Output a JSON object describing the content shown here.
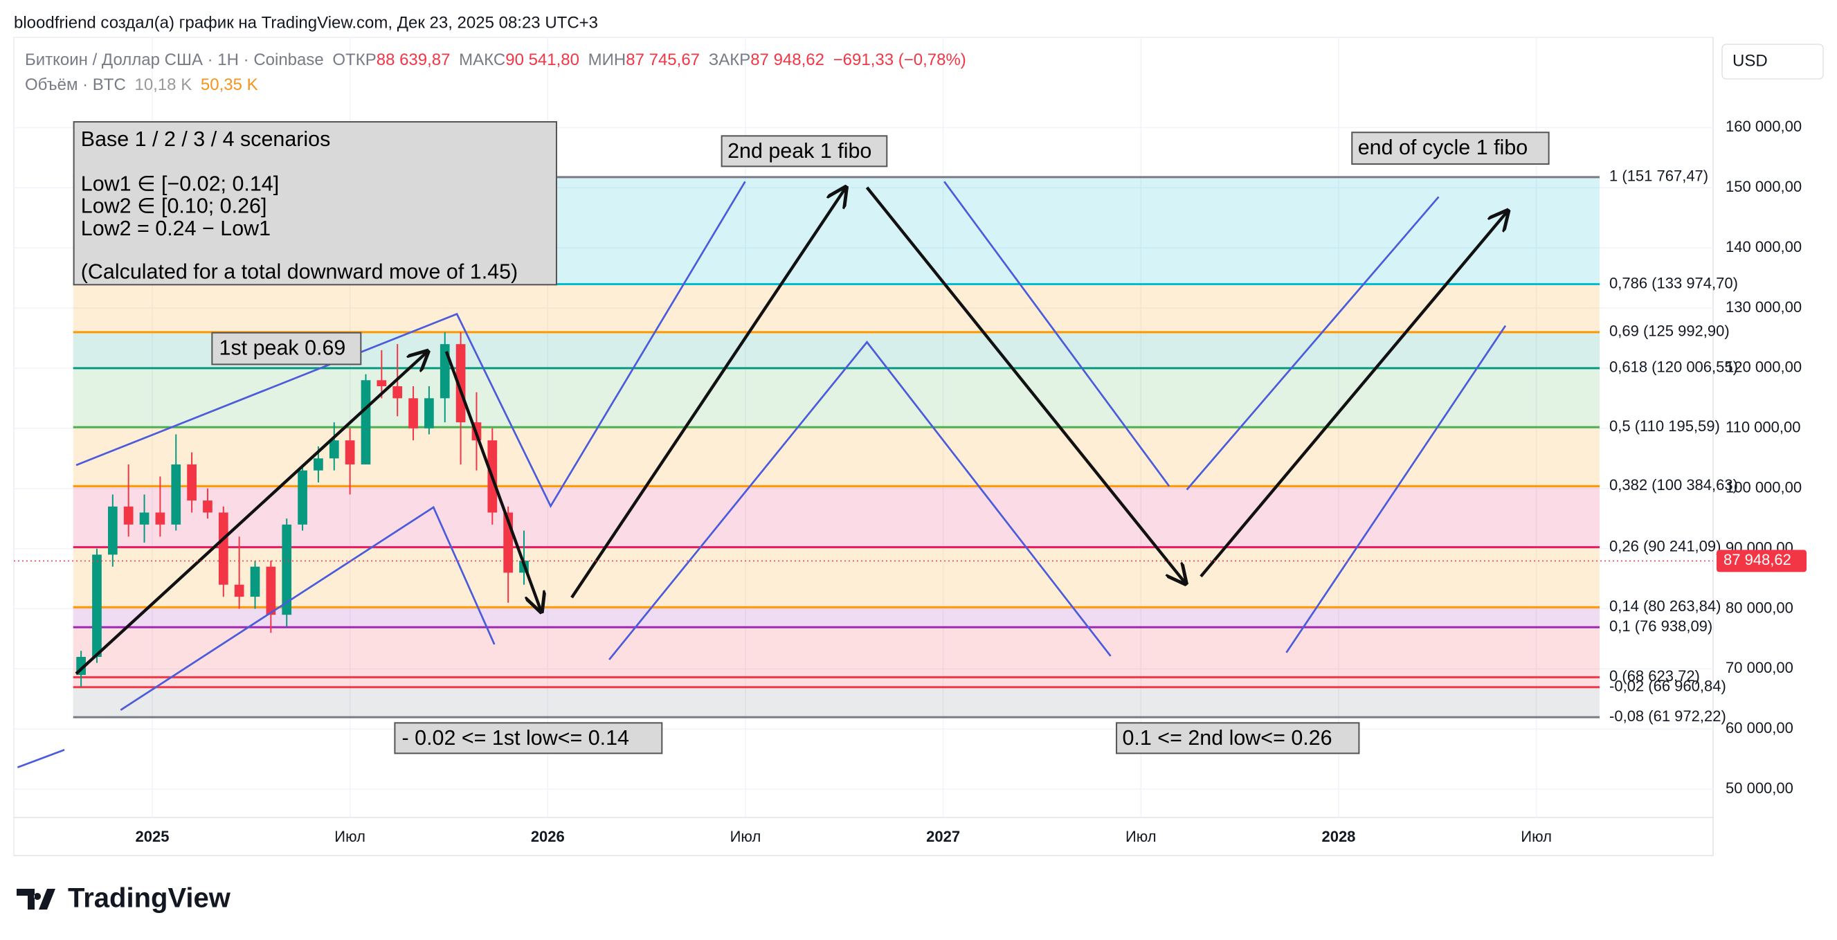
{
  "header": {
    "author_line": "bloodfriend создал(а) график на TradingView.com, Дек 23, 2025 08:23 UTC+3"
  },
  "legend": {
    "symbol": "Биткоин / Доллар США · 1H · Coinbase",
    "open_label": "ОТКР",
    "open": "88 639,87",
    "high_label": "МАКС",
    "high": "90 541,80",
    "low_label": "МИН",
    "low": "87 745,67",
    "close_label": "ЗАКР",
    "close": "87 948,62",
    "change": "−691,33 (−0,78%)",
    "volume_label": "Объём · BTC",
    "volume": "10,18 K",
    "volume_ma": "50,35 K"
  },
  "currency": "USD",
  "brand": "TradingView",
  "chart_data": {
    "type": "candlestick",
    "x": [
      2024.82,
      2024.86,
      2024.9,
      2024.94,
      2024.98,
      2025.02,
      2025.06,
      2025.1,
      2025.14,
      2025.18,
      2025.22,
      2025.26,
      2025.3,
      2025.34,
      2025.38,
      2025.42,
      2025.46,
      2025.5,
      2025.54,
      2025.58,
      2025.62,
      2025.66,
      2025.7,
      2025.74,
      2025.78,
      2025.82,
      2025.86,
      2025.9,
      2025.94
    ],
    "open": [
      69000,
      72000,
      89000,
      97000,
      94000,
      96000,
      94000,
      104000,
      98000,
      96000,
      84000,
      82000,
      87000,
      79000,
      94000,
      103000,
      105000,
      108000,
      104000,
      118000,
      117000,
      115000,
      110000,
      115000,
      124000,
      111000,
      108000,
      96000,
      86000
    ],
    "high": [
      73000,
      90000,
      99000,
      104000,
      99000,
      102000,
      109000,
      106000,
      100000,
      97000,
      92000,
      88000,
      88000,
      95000,
      104000,
      107000,
      111000,
      110000,
      119000,
      123000,
      124000,
      117000,
      117000,
      126000,
      126000,
      116000,
      110000,
      97000,
      93000
    ],
    "low": [
      67000,
      71000,
      87000,
      92000,
      91000,
      92000,
      93000,
      96000,
      95000,
      82000,
      80000,
      80000,
      76000,
      77000,
      93000,
      101000,
      103000,
      99000,
      104000,
      115000,
      112000,
      108000,
      109000,
      111000,
      104000,
      103000,
      94000,
      81000,
      84000
    ],
    "close": [
      72000,
      89000,
      97000,
      94000,
      96000,
      94000,
      104000,
      98000,
      96000,
      84000,
      82000,
      87000,
      79000,
      94000,
      103000,
      105000,
      108000,
      104000,
      118000,
      117000,
      115000,
      110000,
      115000,
      124000,
      111000,
      108000,
      96000,
      86000,
      88000
    ],
    "up_color": "#089981",
    "down_color": "#f23645",
    "xlim": [
      2024.65,
      2028.947
    ],
    "xticks": [
      {
        "value": 2025,
        "label": "2025"
      },
      {
        "value": 2025.5,
        "label": "Июл"
      },
      {
        "value": 2026,
        "label": "2026"
      },
      {
        "value": 2026.5,
        "label": "Июл"
      },
      {
        "value": 2027,
        "label": "2027"
      },
      {
        "value": 2027.5,
        "label": "Июл"
      },
      {
        "value": 2028,
        "label": "2028"
      },
      {
        "value": 2028.5,
        "label": "Июл"
      }
    ],
    "ylim": [
      45300,
      175000
    ],
    "yticks": [
      {
        "value": 50000,
        "label": "50 000,00"
      },
      {
        "value": 60000,
        "label": "60 000,00"
      },
      {
        "value": 70000,
        "label": "70 000,00"
      },
      {
        "value": 80000,
        "label": "80 000,00"
      },
      {
        "value": 90000,
        "label": "90 000,00"
      },
      {
        "value": 100000,
        "label": "100 000,00"
      },
      {
        "value": 110000,
        "label": "110 000,00"
      },
      {
        "value": 120000,
        "label": "120 000,00"
      },
      {
        "value": 130000,
        "label": "130 000,00"
      },
      {
        "value": 140000,
        "label": "140 000,00"
      },
      {
        "value": 150000,
        "label": "150 000,00"
      },
      {
        "value": 160000,
        "label": "160 000,00"
      }
    ],
    "grid": true,
    "fib_range": [
      2024.8,
      2028.66
    ],
    "fib_levels": [
      {
        "value": 151767.47,
        "label": "1 (151 767,47)",
        "color": "#787b86"
      },
      {
        "value": 133974.7,
        "label": "0,786 (133 974,70)",
        "color": "#00bcd4"
      },
      {
        "value": 125992.9,
        "label": "0,69 (125 992,90)",
        "color": "#ff9800"
      },
      {
        "value": 120006.55,
        "label": "0,618 (120 006,55)",
        "color": "#089981"
      },
      {
        "value": 110195.59,
        "label": "0,5 (110 195,59)",
        "color": "#4caf50"
      },
      {
        "value": 100384.63,
        "label": "0,382 (100 384,63)",
        "color": "#ff9800"
      },
      {
        "value": 90241.09,
        "label": "0,26 (90 241,09)",
        "color": "#e91e63"
      },
      {
        "value": 80263.84,
        "label": "0,14 (80 263,84)",
        "color": "#ff9800"
      },
      {
        "value": 76938.09,
        "label": "0,1 (76 938,09)",
        "color": "#9c27b0"
      },
      {
        "value": 68623.72,
        "label": "0 (68 623,72)",
        "color": "#f23645"
      },
      {
        "value": 66960.84,
        "label": "-0,02 (66 960,84)",
        "color": "#f23645"
      },
      {
        "value": 61972.22,
        "label": "-0,08 (61 972,22)",
        "color": "#787b86"
      }
    ],
    "last_price": {
      "value": 87948.62,
      "label": "87 948,62"
    },
    "annotations": {
      "scenarios": [
        "Base 1 / 2 / 3 / 4 scenarios",
        "Low1 ∈ [−0.02; 0.14]",
        "Low2 ∈ [0.10; 0.26]",
        "Low2 = 0.24 − Low1",
        "(Calculated for a total downward move of 1.45)"
      ],
      "first_peak": "1st peak 0.69",
      "second_peak": "2nd peak 1 fibo",
      "end_cycle": "end of cycle 1 fibo",
      "first_low": "- 0.02 <= 1st low<= 0.14",
      "second_low": "0.1 <= 2nd low<= 0.26"
    }
  }
}
